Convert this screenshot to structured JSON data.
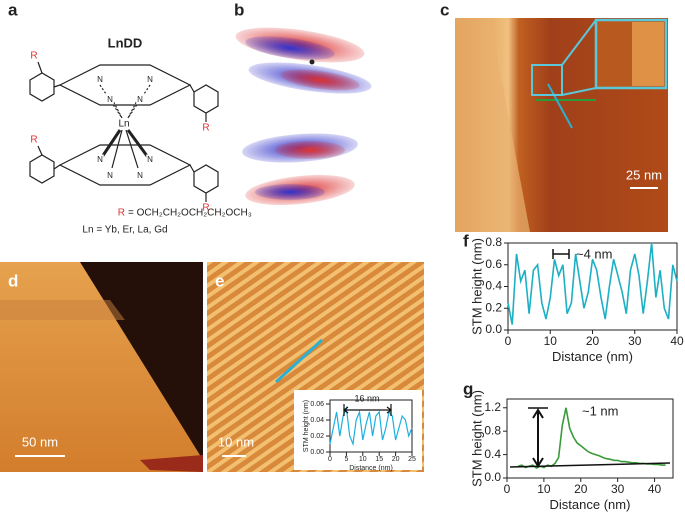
{
  "panels": {
    "labels": [
      "a",
      "b",
      "c",
      "d",
      "e",
      "f",
      "g"
    ]
  },
  "structure": {
    "title": "LnDD",
    "substituents": [
      "R",
      "R",
      "R",
      "R"
    ],
    "atoms": [
      "N",
      "N",
      "N",
      "N",
      "N",
      "N",
      "N",
      "N"
    ],
    "metal": "Ln",
    "r_label": "R",
    "r_definition": "= OCH₂CH₂OCH₂CH₂OCH₃",
    "ln_definition": "Ln = Yb, Er, La, Gd"
  },
  "scale_bars": {
    "c": "25 nm",
    "d": "50 nm",
    "e": "10 nm"
  },
  "chart_data": [
    {
      "type": "line",
      "x_label": "Distance (nm)",
      "y_label": "STM height (nm)",
      "annotation": "~4 nm",
      "color": "#1cb0c4",
      "x": [
        0,
        1,
        2,
        3,
        4,
        5,
        6,
        7,
        8,
        9,
        10,
        11,
        12,
        13,
        14,
        15,
        16,
        17,
        18,
        19,
        20,
        21,
        22,
        23,
        24,
        25,
        26,
        27,
        28,
        29,
        30,
        31,
        32,
        33,
        34,
        35,
        36,
        37,
        38,
        39,
        40
      ],
      "values": [
        0.25,
        0.05,
        0.7,
        0.45,
        0.55,
        0.15,
        0.55,
        0.6,
        0.25,
        0.1,
        0.3,
        0.65,
        0.5,
        0.6,
        0.15,
        0.25,
        0.7,
        0.45,
        0.2,
        0.35,
        0.65,
        0.55,
        0.3,
        0.1,
        0.4,
        0.65,
        0.5,
        0.35,
        0.15,
        0.55,
        0.7,
        0.5,
        0.15,
        0.45,
        0.8,
        0.3,
        0.55,
        0.2,
        0.1,
        0.6,
        0.45
      ],
      "xlim": [
        0,
        40
      ],
      "xticks": [
        0,
        10,
        20,
        30,
        40
      ],
      "ylim": [
        0,
        0.8
      ],
      "yticks": [
        {
          "value": 0,
          "label": "0.0"
        },
        0.2,
        0.4,
        0.6,
        0.8
      ]
    },
    {
      "type": "line",
      "x_label": "Distance (nm)",
      "y_label": "STM height (nm)",
      "annotation": "~1 nm",
      "color": "#3a9a3a",
      "x": [
        3,
        4,
        5,
        6,
        7,
        8,
        9,
        10,
        11,
        12,
        13,
        14,
        15,
        16,
        17,
        18,
        19,
        20,
        21,
        22,
        23,
        24,
        25,
        26,
        27,
        28,
        29,
        30,
        31,
        32,
        33,
        34,
        35,
        36,
        37,
        38,
        39,
        40,
        41,
        42,
        43
      ],
      "values": [
        0.2,
        0.22,
        0.18,
        0.2,
        0.22,
        0.17,
        0.2,
        0.18,
        0.22,
        0.2,
        0.25,
        0.35,
        0.9,
        1.2,
        0.85,
        0.7,
        0.6,
        0.55,
        0.5,
        0.45,
        0.42,
        0.4,
        0.38,
        0.35,
        0.33,
        0.32,
        0.3,
        0.3,
        0.28,
        0.28,
        0.27,
        0.26,
        0.26,
        0.25,
        0.25,
        0.24,
        0.24,
        0.23,
        0.23,
        0.22,
        0.22
      ],
      "xlim": [
        0,
        45
      ],
      "xticks": [
        0,
        10,
        20,
        30,
        40
      ],
      "ylim": [
        0,
        1.35
      ],
      "yticks": [
        {
          "value": 0,
          "label": "0.0"
        },
        0.4,
        0.8,
        1.2
      ]
    },
    {
      "type": "line",
      "x_label": "Distance (nm)",
      "y_label": "STM height (nm)",
      "annotation": "16 nm",
      "color": "#1cb0e0",
      "x": [
        0,
        1,
        2,
        3,
        4,
        5,
        6,
        7,
        8,
        9,
        10,
        11,
        12,
        13,
        14,
        15,
        16,
        17,
        18,
        19,
        20,
        21,
        22,
        23,
        24,
        25
      ],
      "values": [
        0.01,
        0.03,
        0.05,
        0.02,
        0.045,
        0.055,
        0.02,
        0.01,
        0.04,
        0.05,
        0.015,
        0.035,
        0.05,
        0.02,
        0.045,
        0.05,
        0.015,
        0.03,
        0.05,
        0.045,
        0.015,
        0.03,
        0.045,
        0.04,
        0.02,
        0.03
      ],
      "xlim": [
        0,
        25
      ],
      "xticks": [
        0,
        5,
        10,
        15,
        20,
        25
      ],
      "ylim": [
        0,
        0.065
      ],
      "yticks": [
        {
          "value": 0,
          "label": "0.00"
        },
        0.02,
        0.04,
        0.06
      ]
    }
  ]
}
